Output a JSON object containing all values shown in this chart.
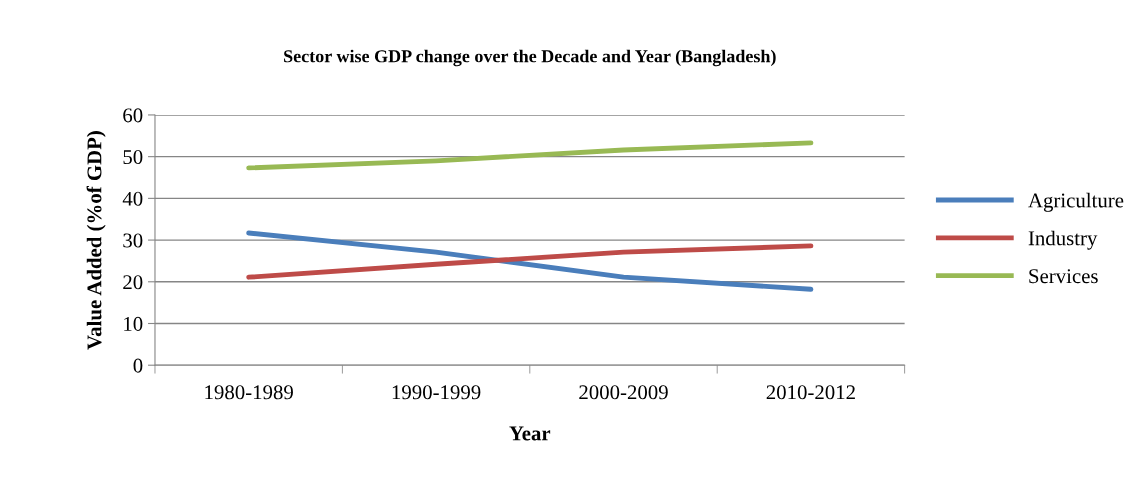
{
  "chart_data": {
    "type": "line",
    "title": "Sector wise GDP change over the Decade and Year (Bangladesh)",
    "xlabel": "Year",
    "ylabel": "Value Added (%of GDP)",
    "categories": [
      "1980-1989",
      "1990-1999",
      "2000-2009",
      "2010-2012"
    ],
    "series": [
      {
        "name": "Agriculture",
        "color": "#4a7ebb",
        "values": [
          31.7,
          27.1,
          21.1,
          18.2
        ]
      },
      {
        "name": "Industry",
        "color": "#be4b48",
        "values": [
          21.1,
          24.2,
          27.1,
          28.6
        ]
      },
      {
        "name": "Services",
        "color": "#98b954",
        "values": [
          47.3,
          49.0,
          51.6,
          53.3
        ]
      }
    ],
    "ylim": [
      0,
      60
    ],
    "yticks": [
      0,
      10,
      20,
      30,
      40,
      50,
      60
    ],
    "grid": "y",
    "legend": "right",
    "marker": "none",
    "line_style": "solid"
  }
}
